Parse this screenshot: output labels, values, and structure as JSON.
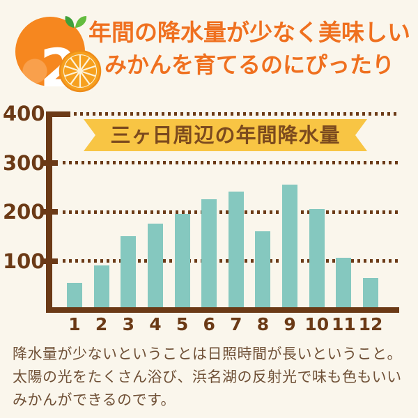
{
  "page": {
    "background": "#FAF6EC"
  },
  "badge": {
    "number": "2",
    "fruit_color": "#F6871F",
    "leaf_colors": [
      "#3FA03A",
      "#63BC3E"
    ]
  },
  "header": {
    "line1": "年間の降水量が少なく美味しい",
    "line2": "みかんを育てるのにぴったり",
    "text_color": "#EF701F"
  },
  "chart_data": {
    "type": "bar",
    "title": "三ヶ日周辺の年間降水量",
    "categories": [
      "1",
      "2",
      "3",
      "4",
      "5",
      "6",
      "7",
      "8",
      "9",
      "10",
      "11",
      "12"
    ],
    "values": [
      50,
      85,
      145,
      170,
      190,
      220,
      235,
      155,
      250,
      200,
      100,
      60
    ],
    "xlabel": "",
    "ylabel": "",
    "ylim": [
      0,
      400
    ],
    "yticks": [
      400,
      300,
      200,
      100
    ],
    "grid": "dotted-horizontal",
    "legend": "none",
    "bar_color": "#85C8BF",
    "axis_color": "#6B3A16",
    "banner_color": "#F8C544",
    "banner_text_color": "#7B4A1E"
  },
  "footer": {
    "lines": [
      "降水量が少ないということは日照時間が長いということ。",
      "太陽の光をたくさん浴び、浜名湖の反射光で味も色もいい",
      "みかんができるのです。"
    ],
    "text_color": "#6F5036"
  }
}
